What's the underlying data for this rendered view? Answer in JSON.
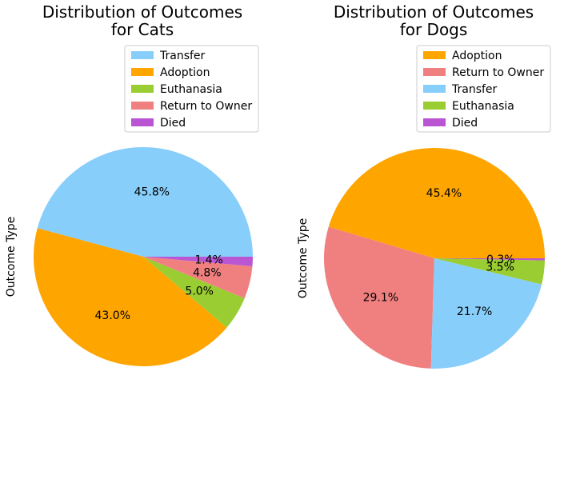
{
  "chart_data": [
    {
      "type": "pie",
      "title_lines": [
        "Distribution of Outcomes",
        "for Cats"
      ],
      "ylabel": "Outcome Type",
      "legend_position": "top-right",
      "slices": [
        {
          "label": "Transfer",
          "value": 45.8,
          "pct_label": "45.8%",
          "color": "#87CEFA"
        },
        {
          "label": "Adoption",
          "value": 43.0,
          "pct_label": "43.0%",
          "color": "#FFA500"
        },
        {
          "label": "Euthanasia",
          "value": 5.0,
          "pct_label": "5.0%",
          "color": "#9ACD32"
        },
        {
          "label": "Return to Owner",
          "value": 4.8,
          "pct_label": "4.8%",
          "color": "#F08080"
        },
        {
          "label": "Died",
          "value": 1.4,
          "pct_label": "1.4%",
          "color": "#BA55D3"
        }
      ]
    },
    {
      "type": "pie",
      "title_lines": [
        "Distribution of Outcomes",
        "for Dogs"
      ],
      "ylabel": "Outcome Type",
      "legend_position": "top-right",
      "slices": [
        {
          "label": "Adoption",
          "value": 45.4,
          "pct_label": "45.4%",
          "color": "#FFA500"
        },
        {
          "label": "Return to Owner",
          "value": 29.1,
          "pct_label": "29.1%",
          "color": "#F08080"
        },
        {
          "label": "Transfer",
          "value": 21.7,
          "pct_label": "21.7%",
          "color": "#87CEFA"
        },
        {
          "label": "Euthanasia",
          "value": 3.5,
          "pct_label": "3.5%",
          "color": "#9ACD32"
        },
        {
          "label": "Died",
          "value": 0.3,
          "pct_label": "0.3%",
          "color": "#BA55D3"
        }
      ]
    }
  ]
}
